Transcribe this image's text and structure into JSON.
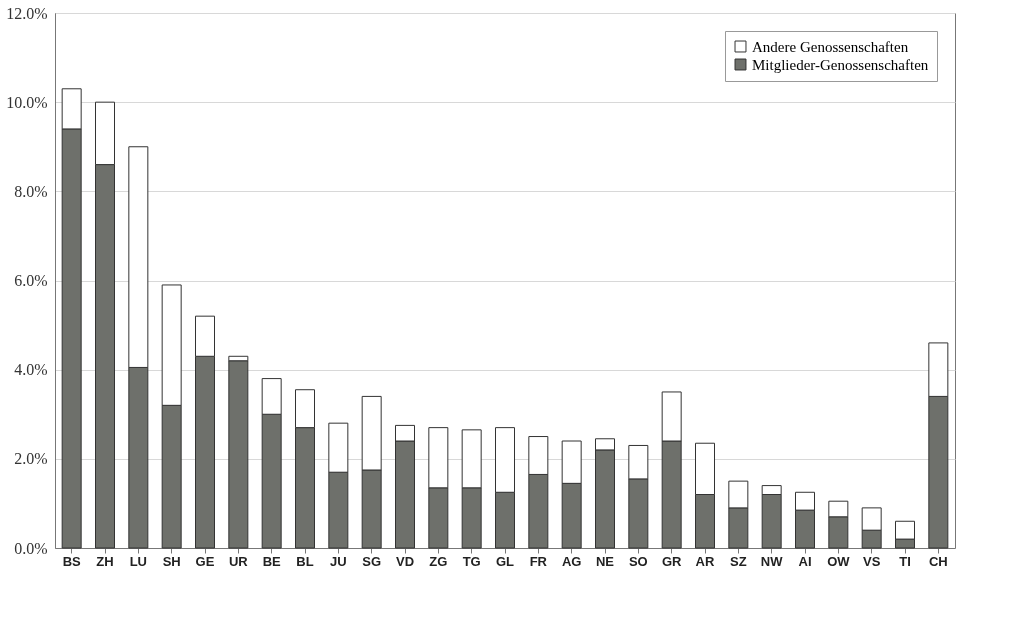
{
  "chart_data": {
    "type": "bar",
    "stacked": true,
    "categories": [
      "BS",
      "ZH",
      "LU",
      "SH",
      "GE",
      "UR",
      "BE",
      "BL",
      "JU",
      "SG",
      "VD",
      "ZG",
      "TG",
      "GL",
      "FR",
      "AG",
      "NE",
      "SO",
      "GR",
      "AR",
      "SZ",
      "NW",
      "AI",
      "OW",
      "VS",
      "TI",
      "CH"
    ],
    "series": [
      {
        "name": "Mitglieder-Genossenschaften",
        "color": "#6e706b",
        "values": [
          9.4,
          8.6,
          4.05,
          3.2,
          4.3,
          4.2,
          3.0,
          2.7,
          1.7,
          1.75,
          2.4,
          1.35,
          1.35,
          1.25,
          1.65,
          1.45,
          2.2,
          1.55,
          2.4,
          1.2,
          0.9,
          1.2,
          0.85,
          0.7,
          0.4,
          0.2,
          3.4
        ]
      },
      {
        "name": "Andere Genossenschaften",
        "color": "#ffffff",
        "values": [
          0.9,
          1.4,
          4.95,
          2.7,
          0.9,
          0.1,
          0.8,
          0.85,
          1.1,
          1.65,
          0.35,
          1.35,
          1.3,
          1.45,
          0.85,
          0.95,
          0.25,
          0.75,
          1.1,
          1.15,
          0.6,
          0.2,
          0.4,
          0.35,
          0.5,
          0.4,
          1.2
        ]
      }
    ],
    "ylim": [
      0,
      12
    ],
    "yticks": [
      {
        "value": 0,
        "label": "0.0%"
      },
      {
        "value": 2,
        "label": "2.0%"
      },
      {
        "value": 4,
        "label": "4.0%"
      },
      {
        "value": 6,
        "label": "6.0%"
      },
      {
        "value": 8,
        "label": "8.0%"
      },
      {
        "value": 10,
        "label": "10.0%"
      },
      {
        "value": 12,
        "label": "12.0%"
      }
    ],
    "grid": "y",
    "legend": "top right"
  }
}
